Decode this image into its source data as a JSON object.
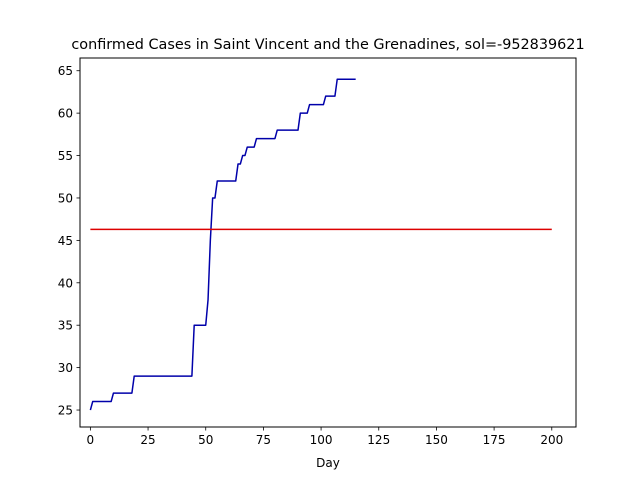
{
  "chart_data": {
    "type": "line",
    "title": "confirmed Cases in Saint Vincent and the Grenadines, sol=-952839621",
    "xlabel": "Day",
    "ylabel": "",
    "xlim": [
      -4.5,
      210.5
    ],
    "ylim": [
      23,
      66.5
    ],
    "xticks": [
      0,
      25,
      50,
      75,
      100,
      125,
      150,
      175,
      200
    ],
    "yticks": [
      25,
      30,
      35,
      40,
      45,
      50,
      55,
      60,
      65
    ],
    "grid": false,
    "legend": "none",
    "series": [
      {
        "color": "#0000aa",
        "x": [
          0,
          1,
          9,
          10,
          18,
          19,
          44,
          45,
          50,
          51,
          52,
          53,
          54,
          55,
          63,
          64,
          65,
          66,
          67,
          68,
          69,
          70,
          71,
          72,
          73,
          74,
          80,
          81,
          90,
          91,
          94,
          95,
          98,
          99,
          101,
          102,
          104,
          105,
          106,
          107,
          114,
          115
        ],
        "y": [
          25,
          26,
          26,
          27,
          27,
          29,
          29,
          35,
          35,
          38,
          45,
          50,
          50,
          52,
          52,
          54,
          54,
          55,
          55,
          56,
          56,
          56,
          56,
          57,
          57,
          57,
          57,
          58,
          58,
          60,
          60,
          61,
          61,
          61,
          61,
          62,
          62,
          62,
          62,
          64,
          64,
          64
        ]
      },
      {
        "color": "#dd0000",
        "x": [
          0,
          200
        ],
        "y": [
          46.3,
          46.3
        ]
      }
    ]
  }
}
